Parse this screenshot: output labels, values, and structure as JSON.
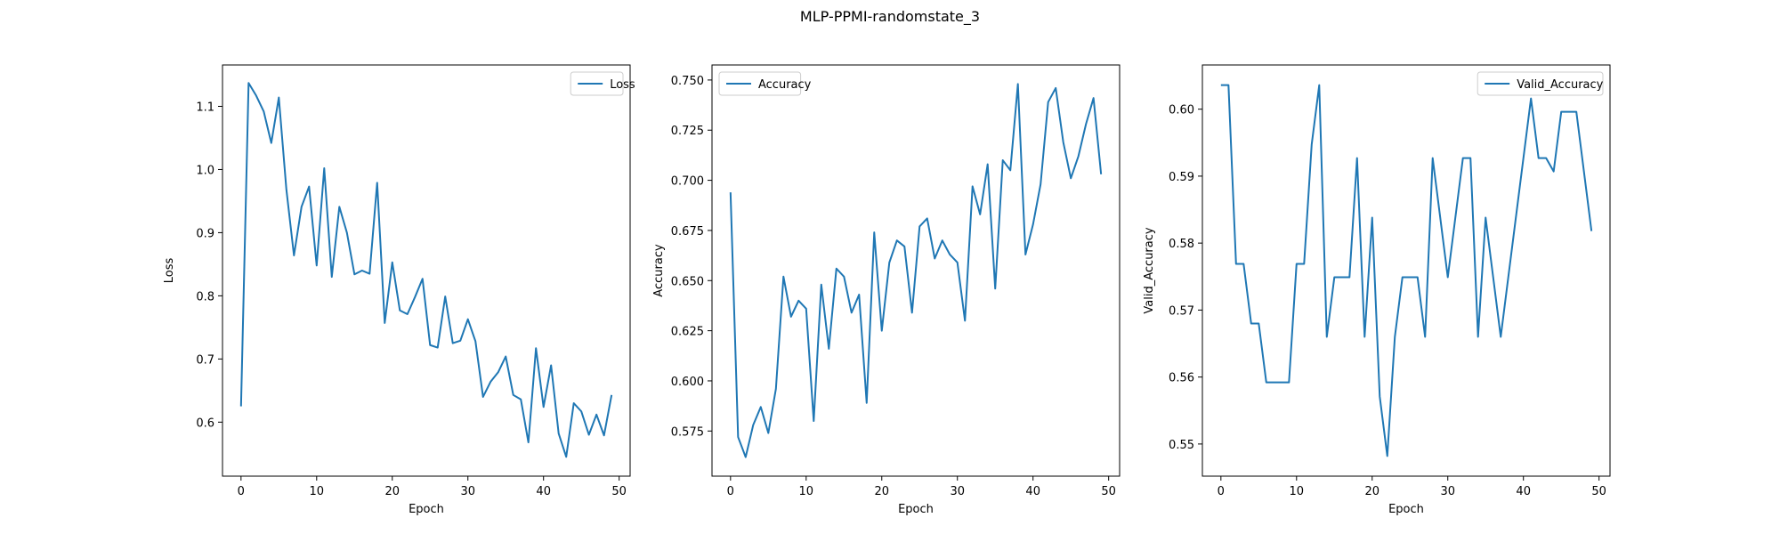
{
  "figure": {
    "title": "MLP-PPMI-randomstate_3"
  },
  "colors": {
    "line": "#1f77b4",
    "axes": "#000000",
    "background": "#ffffff",
    "legend_border": "#cccccc"
  },
  "chart_data": [
    {
      "type": "line",
      "title": "",
      "xlabel": "Epoch",
      "ylabel": "Loss",
      "xlim": [
        -2.45,
        51.45
      ],
      "ylim": [
        0.5145,
        1.1655
      ],
      "xticks": [
        0,
        10,
        20,
        30,
        40,
        50
      ],
      "yticks": [
        0.6,
        0.7,
        0.8,
        0.9,
        1.0,
        1.1
      ],
      "ytick_labels": [
        "0.6",
        "0.7",
        "0.8",
        "0.9",
        "1.0",
        "1.1"
      ],
      "grid": false,
      "legend": {
        "position": "top-right",
        "entries": [
          "Loss"
        ]
      },
      "series": [
        {
          "name": "Loss",
          "x": [
            0,
            1,
            2,
            3,
            4,
            5,
            6,
            7,
            8,
            9,
            10,
            11,
            12,
            13,
            14,
            15,
            16,
            17,
            18,
            19,
            20,
            21,
            22,
            23,
            24,
            25,
            26,
            27,
            28,
            29,
            30,
            31,
            32,
            33,
            34,
            35,
            36,
            37,
            38,
            39,
            40,
            41,
            42,
            43,
            44,
            45,
            46,
            47,
            48,
            49
          ],
          "values": [
            0.625,
            1.137,
            1.117,
            1.092,
            1.042,
            1.114,
            0.968,
            0.864,
            0.941,
            0.973,
            0.848,
            1.002,
            0.83,
            0.941,
            0.9,
            0.834,
            0.84,
            0.835,
            0.979,
            0.757,
            0.853,
            0.777,
            0.771,
            0.798,
            0.827,
            0.722,
            0.718,
            0.799,
            0.725,
            0.729,
            0.763,
            0.728,
            0.64,
            0.664,
            0.679,
            0.704,
            0.643,
            0.636,
            0.568,
            0.717,
            0.624,
            0.69,
            0.582,
            0.545,
            0.63,
            0.617,
            0.58,
            0.612,
            0.579,
            0.643
          ]
        }
      ]
    },
    {
      "type": "line",
      "title": "",
      "xlabel": "Epoch",
      "ylabel": "Accuracy",
      "xlim": [
        -2.45,
        51.45
      ],
      "ylim": [
        0.5525,
        0.7575
      ],
      "xticks": [
        0,
        10,
        20,
        30,
        40,
        50
      ],
      "yticks": [
        0.575,
        0.6,
        0.625,
        0.65,
        0.675,
        0.7,
        0.725,
        0.75
      ],
      "ytick_labels": [
        "0.575",
        "0.600",
        "0.625",
        "0.650",
        "0.675",
        "0.700",
        "0.725",
        "0.750"
      ],
      "grid": false,
      "legend": {
        "position": "top-left",
        "entries": [
          "Accuracy"
        ]
      },
      "series": [
        {
          "name": "Accuracy",
          "x": [
            0,
            1,
            2,
            3,
            4,
            5,
            6,
            7,
            8,
            9,
            10,
            11,
            12,
            13,
            14,
            15,
            16,
            17,
            18,
            19,
            20,
            21,
            22,
            23,
            24,
            25,
            26,
            27,
            28,
            29,
            30,
            31,
            32,
            33,
            34,
            35,
            36,
            37,
            38,
            39,
            40,
            41,
            42,
            43,
            44,
            45,
            46,
            47,
            48,
            49
          ],
          "values": [
            0.694,
            0.572,
            0.562,
            0.578,
            0.587,
            0.574,
            0.596,
            0.652,
            0.632,
            0.64,
            0.636,
            0.58,
            0.648,
            0.616,
            0.656,
            0.652,
            0.634,
            0.643,
            0.589,
            0.674,
            0.625,
            0.659,
            0.67,
            0.667,
            0.634,
            0.677,
            0.681,
            0.661,
            0.67,
            0.663,
            0.659,
            0.63,
            0.697,
            0.683,
            0.708,
            0.646,
            0.71,
            0.705,
            0.748,
            0.663,
            0.678,
            0.698,
            0.739,
            0.746,
            0.719,
            0.701,
            0.712,
            0.728,
            0.741,
            0.703
          ]
        }
      ]
    },
    {
      "type": "line",
      "title": "",
      "xlabel": "Epoch",
      "ylabel": "Valid_Accuracy",
      "xlim": [
        -2.45,
        51.45
      ],
      "ylim": [
        0.5452,
        0.6066
      ],
      "xticks": [
        0,
        10,
        20,
        30,
        40,
        50
      ],
      "yticks": [
        0.55,
        0.56,
        0.57,
        0.58,
        0.59,
        0.6
      ],
      "ytick_labels": [
        "0.55",
        "0.56",
        "0.57",
        "0.58",
        "0.59",
        "0.60"
      ],
      "grid": false,
      "legend": {
        "position": "top-right",
        "entries": [
          "Valid_Accuracy"
        ]
      },
      "series": [
        {
          "name": "Valid_Accuracy",
          "x": [
            0,
            1,
            2,
            3,
            4,
            5,
            6,
            7,
            8,
            9,
            10,
            11,
            12,
            13,
            14,
            15,
            16,
            17,
            18,
            19,
            20,
            21,
            22,
            23,
            24,
            25,
            26,
            27,
            28,
            29,
            30,
            31,
            32,
            33,
            34,
            35,
            36,
            37,
            38,
            39,
            40,
            41,
            42,
            43,
            44,
            45,
            46,
            47,
            48,
            49
          ],
          "values": [
            0.6036,
            0.6036,
            0.5769,
            0.5769,
            0.568,
            0.568,
            0.5592,
            0.5592,
            0.5592,
            0.5592,
            0.5769,
            0.5769,
            0.5947,
            0.6036,
            0.566,
            0.5749,
            0.5749,
            0.5749,
            0.5927,
            0.566,
            0.5838,
            0.5571,
            0.5482,
            0.566,
            0.5749,
            0.5749,
            0.5749,
            0.566,
            0.5927,
            0.5838,
            0.5749,
            0.5838,
            0.5927,
            0.5927,
            0.566,
            0.5838,
            0.5749,
            0.566,
            0.5749,
            0.5838,
            0.5927,
            0.6016,
            0.5927,
            0.5927,
            0.5907,
            0.5996,
            0.5996,
            0.5996,
            0.5907,
            0.5818
          ]
        }
      ]
    }
  ]
}
